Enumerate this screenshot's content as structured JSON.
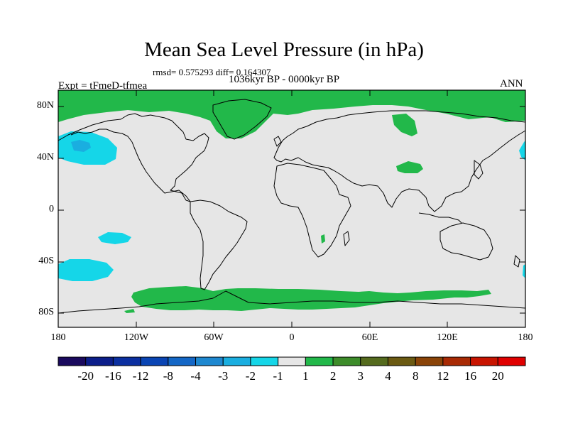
{
  "map": {
    "title": "Mean Sea Level Pressure (in hPa)",
    "stats_line": "rmsd= 0.575293 diff= 0.164307",
    "period": "1036kyr BP - 0000kyr BP",
    "experiment": "Expt = tFmeD-tfmea",
    "season": "ANN",
    "lat_labels": [
      "80N",
      "40N",
      "0",
      "40S",
      "80S"
    ],
    "lon_labels": [
      "180",
      "120W",
      "60W",
      "0",
      "60E",
      "120E",
      "180"
    ]
  },
  "colorbar": {
    "labels": [
      "-20",
      "-16",
      "-12",
      "-8",
      "-4",
      "-3",
      "-2",
      "-1",
      "1",
      "2",
      "3",
      "4",
      "8",
      "12",
      "16",
      "20"
    ],
    "colors": [
      "#1a0a5e",
      "#0c1e8a",
      "#0b2fa0",
      "#0a45b4",
      "#1467c6",
      "#1e88d0",
      "#1aaee0",
      "#15d6e8",
      "#e6e6e6",
      "#22b84a",
      "#3d8c2a",
      "#556b1e",
      "#6b5a12",
      "#8a4408",
      "#a82a04",
      "#c81400",
      "#e00000"
    ]
  },
  "colors": {
    "land_background": "#e6e6e6",
    "positive_anomaly": "#22b84a",
    "negative_light": "#15d6e8",
    "negative_mid": "#1aaee0"
  }
}
